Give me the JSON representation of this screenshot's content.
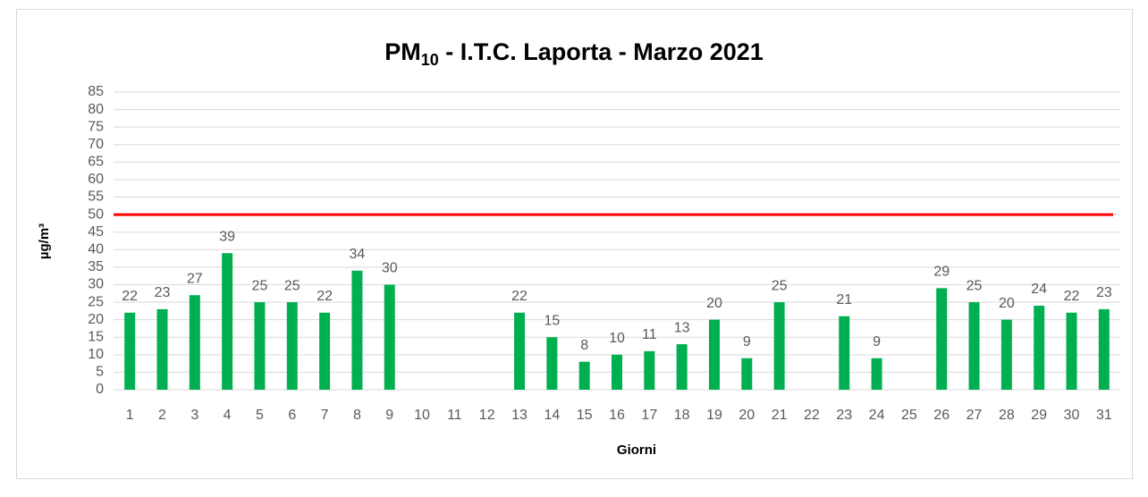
{
  "chart_data": {
    "type": "bar",
    "title": {
      "main": "PM",
      "subscript": "10",
      "rest": " - I.T.C. Laporta - Marzo 2021"
    },
    "x_label": "Giorni",
    "y_label": "µg/m³",
    "categories": [
      "1",
      "2",
      "3",
      "4",
      "5",
      "6",
      "7",
      "8",
      "9",
      "10",
      "11",
      "12",
      "13",
      "14",
      "15",
      "16",
      "17",
      "18",
      "19",
      "20",
      "21",
      "22",
      "23",
      "24",
      "25",
      "26",
      "27",
      "28",
      "29",
      "30",
      "31"
    ],
    "values": [
      22,
      23,
      27,
      39,
      25,
      25,
      22,
      34,
      30,
      null,
      null,
      null,
      22,
      15,
      8,
      10,
      11,
      13,
      20,
      9,
      25,
      null,
      21,
      9,
      null,
      29,
      25,
      20,
      24,
      22,
      23
    ],
    "color": "#00b050",
    "threshold": 50,
    "threshold_color": "#ff0000",
    "ylim": [
      0,
      85
    ],
    "yticks": [
      0,
      5,
      10,
      15,
      20,
      25,
      30,
      35,
      40,
      45,
      50,
      55,
      60,
      65,
      70,
      75,
      80,
      85
    ],
    "grid": true
  }
}
